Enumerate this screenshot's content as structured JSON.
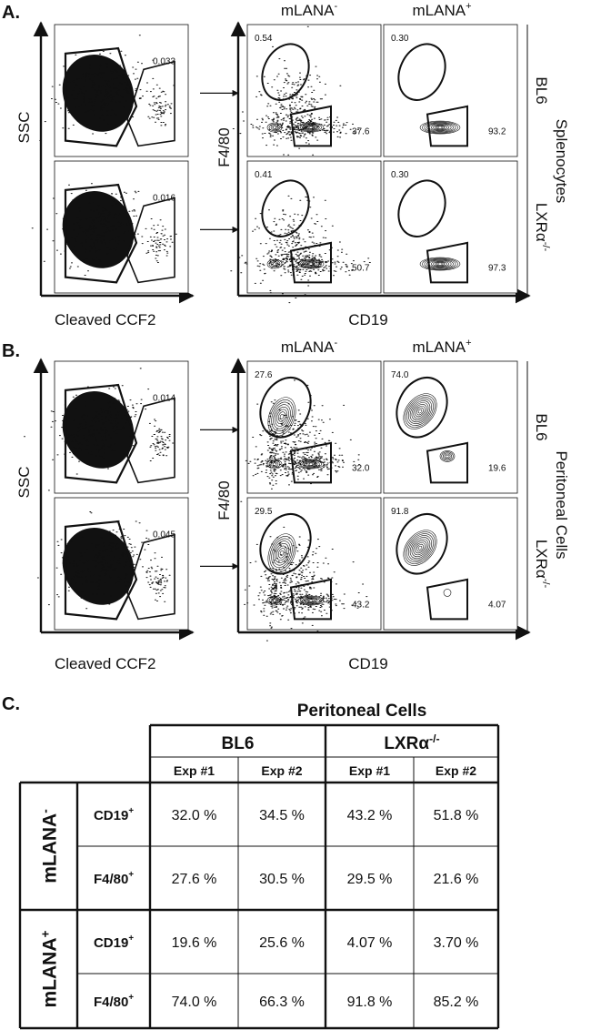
{
  "panels": {
    "A": {
      "letter": "A.",
      "title": "Splenocytes",
      "rows": [
        {
          "label": "BL6",
          "ccf2_gate": "0.033",
          "neg_top": "0.54",
          "neg_bottom": "37.6",
          "pos_top": "0.30",
          "pos_bottom": "93.2"
        },
        {
          "label": "LXRα-/-",
          "ccf2_gate": "0.016",
          "neg_top": "0.41",
          "neg_bottom": "50.7",
          "pos_top": "0.30",
          "pos_bottom": "97.3"
        }
      ]
    },
    "B": {
      "letter": "B.",
      "title": "Peritoneal Cells",
      "rows": [
        {
          "label": "BL6",
          "ccf2_gate": "0.014",
          "neg_top": "27.6",
          "neg_bottom": "32.0",
          "pos_top": "74.0",
          "pos_bottom": "19.6"
        },
        {
          "label": "LXRα-/-",
          "ccf2_gate": "0.045",
          "neg_top": "29.5",
          "neg_bottom": "43.2",
          "pos_top": "91.8",
          "pos_bottom": "4.07"
        }
      ]
    }
  },
  "axes": {
    "ssc": "SSC",
    "ccf2": "Cleaved CCF2",
    "f480": "F4/80",
    "cd19": "CD19"
  },
  "columns": {
    "neg": "mLANA-",
    "pos": "mLANA+"
  },
  "table": {
    "letter": "C.",
    "title": "Peritoneal Cells",
    "groups": [
      "BL6",
      "LXRα-/-"
    ],
    "experiments": [
      "Exp #1",
      "Exp #2",
      "Exp #1",
      "Exp #2"
    ],
    "row_groups": [
      {
        "label": "mLANA-",
        "rows": [
          {
            "marker": "CD19+",
            "values": [
              "32.0 %",
              "34.5 %",
              "43.2 %",
              "51.8 %"
            ]
          },
          {
            "marker": "F4/80+",
            "values": [
              "27.6 %",
              "30.5 %",
              "29.5 %",
              "21.6 %"
            ]
          }
        ]
      },
      {
        "label": "mLANA+",
        "rows": [
          {
            "marker": "CD19+",
            "values": [
              "19.6 %",
              "25.6 %",
              "4.07 %",
              "3.70 %"
            ]
          },
          {
            "marker": "F4/80+",
            "values": [
              "74.0 %",
              "66.3 %",
              "91.8 %",
              "85.2 %"
            ]
          }
        ]
      }
    ]
  }
}
